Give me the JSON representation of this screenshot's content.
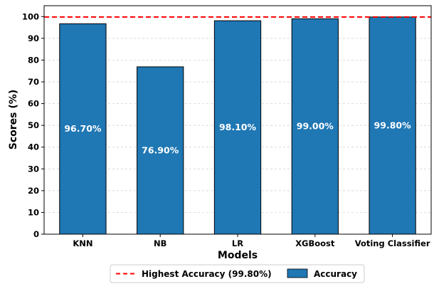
{
  "chart_data": {
    "type": "bar",
    "categories": [
      "KNN",
      "NB",
      "LR",
      "XGBoost",
      "Voting Classifier"
    ],
    "series": [
      {
        "name": "Accuracy",
        "values": [
          96.7,
          76.9,
          98.1,
          99.0,
          99.8
        ]
      }
    ],
    "data_labels": [
      "96.70%",
      "76.90%",
      "98.10%",
      "99.00%",
      "99.80%"
    ],
    "reference_line": {
      "value": 99.8,
      "label": "Highest Accuracy (99.80%)",
      "color": "#ff0000",
      "style": "dashed"
    },
    "xlabel": "Models",
    "ylabel": "Scores (%)",
    "ylim": [
      0,
      105
    ],
    "yticks": [
      0,
      10,
      20,
      30,
      40,
      50,
      60,
      70,
      80,
      90,
      100
    ],
    "grid": true,
    "legend": {
      "placement": "bottom-center",
      "entries": [
        "Highest Accuracy (99.80%)",
        "Accuracy"
      ]
    },
    "colors": {
      "bar": "#1f77b4",
      "bar_edge": "#000000",
      "reference": "#ff0000",
      "grid": "#cccccc"
    }
  }
}
